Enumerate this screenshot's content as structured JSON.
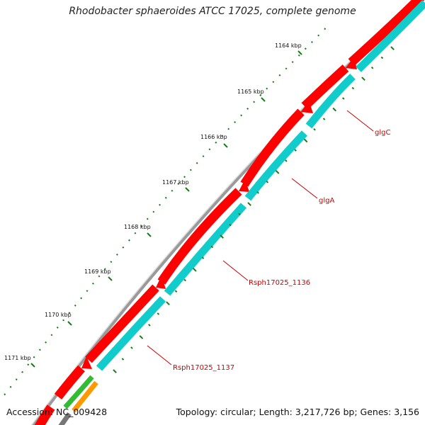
{
  "title": "Rhodobacter sphaeroides ATCC 17025, complete genome",
  "footer": {
    "accession": "Accession: NC_009428",
    "summary": "Topology: circular; Length: 3,217,726 bp; Genes: 3,156"
  },
  "ruler_labels": [
    "1164 kbp",
    "1165 kbp",
    "1166 kbp",
    "1167 kbp",
    "1168 kbp",
    "1169 kbp",
    "1170 kbp",
    "1171 kbp"
  ],
  "genes": [
    "glgC",
    "glgA",
    "Rsph17025_1136",
    "Rsph17025_1137"
  ],
  "colors": {
    "backbone": "#808080",
    "forward_cds": "#ff0000",
    "reverse_cds": "#00cccc",
    "tick": "#1a7a1a",
    "gene_label": "#cc0000",
    "green_feature": "#33bb33",
    "orange_feature": "#ff9900"
  }
}
